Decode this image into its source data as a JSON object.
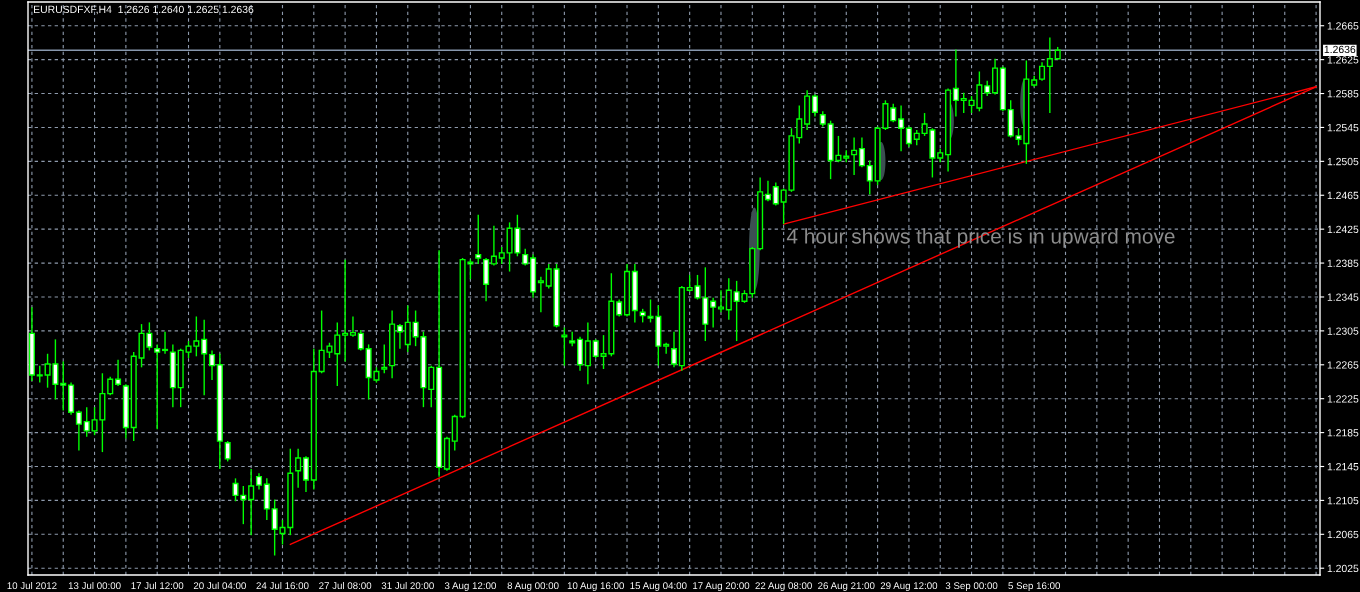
{
  "chart_data": {
    "type": "candlestick",
    "title": "EURUSDFXF,H4  1.2626 1.2640 1.2625 1.2636",
    "color": "#00ff00",
    "categories": [
      "10 Jul 2012",
      null,
      null,
      null,
      null,
      null,
      null,
      null,
      "13 Jul 00:00",
      null,
      null,
      null,
      null,
      null,
      null,
      null,
      "17 Jul 12:00",
      null,
      null,
      null,
      null,
      null,
      null,
      null,
      "20 Jul 04:00",
      null,
      null,
      null,
      null,
      null,
      null,
      null,
      "24 Jul 16:00",
      null,
      null,
      null,
      null,
      null,
      null,
      null,
      "27 Jul 08:00",
      null,
      null,
      null,
      null,
      null,
      null,
      null,
      "31 Jul 20:00",
      null,
      null,
      null,
      null,
      null,
      null,
      null,
      "3 Aug 12:00",
      null,
      null,
      null,
      null,
      null,
      null,
      null,
      "8 Aug 00:00",
      null,
      null,
      null,
      null,
      null,
      null,
      null,
      "10 Aug 16:00",
      null,
      null,
      null,
      null,
      null,
      null,
      null,
      "15 Aug 04:00",
      null,
      null,
      null,
      null,
      null,
      null,
      null,
      "17 Aug 20:00",
      null,
      null,
      null,
      null,
      null,
      null,
      null,
      "22 Aug 08:00",
      null,
      null,
      null,
      null,
      null,
      null,
      null,
      "26 Aug 21:00",
      null,
      null,
      null,
      null,
      null,
      null,
      null,
      "29 Aug 12:00",
      null,
      null,
      null,
      null,
      null,
      null,
      null,
      "3 Sep 00:00",
      null,
      null,
      null,
      null,
      null,
      null,
      null,
      "5 Sep 16:00",
      null,
      null,
      null,
      null,
      null,
      null,
      null,
      null,
      null,
      null,
      null,
      null,
      null,
      null,
      null,
      null,
      null,
      null,
      null,
      null,
      null,
      null,
      null,
      null,
      null,
      null,
      null,
      null,
      null,
      null,
      null,
      null,
      null,
      null,
      null,
      null
    ],
    "ohlc": [
      [
        1.2302,
        1.2333,
        1.2246,
        1.2253
      ],
      [
        1.2252,
        1.2264,
        1.2244,
        1.2253
      ],
      [
        1.2253,
        1.2278,
        1.2238,
        1.2266
      ],
      [
        1.2266,
        1.2295,
        1.2224,
        1.2242
      ],
      [
        1.2243,
        1.2269,
        1.2211,
        1.2241
      ],
      [
        1.2241,
        1.2244,
        1.2206,
        1.2209
      ],
      [
        1.2209,
        1.2211,
        1.2164,
        1.2195
      ],
      [
        1.2198,
        1.2215,
        1.218,
        1.2187
      ],
      [
        1.2187,
        1.2215,
        1.2182,
        1.22
      ],
      [
        1.22,
        1.2255,
        1.2162,
        1.2231
      ],
      [
        1.2231,
        1.2251,
        1.2229,
        1.2248
      ],
      [
        1.2248,
        1.2271,
        1.224,
        1.2242
      ],
      [
        1.224,
        1.2242,
        1.2178,
        1.2191
      ],
      [
        1.2191,
        1.228,
        1.2175,
        1.2275
      ],
      [
        1.2273,
        1.2313,
        1.2262,
        1.2302
      ],
      [
        1.2302,
        1.2315,
        1.2282,
        1.2286
      ],
      [
        1.2284,
        1.2289,
        1.2189,
        1.228
      ],
      [
        1.2282,
        1.2304,
        1.2278,
        1.2283
      ],
      [
        1.228,
        1.2289,
        1.2215,
        1.2238
      ],
      [
        1.2238,
        1.2284,
        1.2215,
        1.2282
      ],
      [
        1.228,
        1.2293,
        1.2273,
        1.2287
      ],
      [
        1.2287,
        1.2322,
        1.2275,
        1.2293
      ],
      [
        1.2295,
        1.2318,
        1.2229,
        1.2278
      ],
      [
        1.2277,
        1.2282,
        1.2247,
        1.2264
      ],
      [
        1.2265,
        1.2278,
        1.2142,
        1.2175
      ],
      [
        1.2173,
        1.2175,
        1.2151,
        1.2154
      ],
      [
        1.2125,
        1.2131,
        1.2104,
        1.2111
      ],
      [
        1.2111,
        1.2122,
        1.2077,
        1.2106
      ],
      [
        1.2106,
        1.2142,
        1.2064,
        1.2122
      ],
      [
        1.2133,
        1.2137,
        1.2118,
        1.2123
      ],
      [
        1.2124,
        1.2131,
        1.2082,
        1.2095
      ],
      [
        1.2095,
        1.2106,
        1.204,
        1.2071
      ],
      [
        1.2066,
        1.2082,
        1.2053,
        1.2073
      ],
      [
        1.2073,
        1.2166,
        1.2064,
        1.2137
      ],
      [
        1.214,
        1.2166,
        1.212,
        1.2155
      ],
      [
        1.2155,
        1.2157,
        1.2115,
        1.2129
      ],
      [
        1.2129,
        1.2284,
        1.2118,
        1.2257
      ],
      [
        1.2257,
        1.2329,
        1.2255,
        1.2282
      ],
      [
        1.228,
        1.2291,
        1.2273,
        1.2287
      ],
      [
        1.2278,
        1.2315,
        1.224,
        1.23
      ],
      [
        1.23,
        1.2389,
        1.2269,
        1.2302
      ],
      [
        1.23,
        1.2322,
        1.2298,
        1.2303
      ],
      [
        1.2302,
        1.2306,
        1.2282,
        1.2284
      ],
      [
        1.2284,
        1.2289,
        1.2224,
        1.225
      ],
      [
        1.2247,
        1.2262,
        1.2244,
        1.2257
      ],
      [
        1.226,
        1.2289,
        1.2255,
        1.2262
      ],
      [
        1.2264,
        1.2329,
        1.2249,
        1.2313
      ],
      [
        1.2311,
        1.2313,
        1.2284,
        1.2304
      ],
      [
        1.2289,
        1.2335,
        1.228,
        1.2315
      ],
      [
        1.2315,
        1.2329,
        1.2287,
        1.2298
      ],
      [
        1.2298,
        1.2304,
        1.2215,
        1.2238
      ],
      [
        1.2236,
        1.2264,
        1.2215,
        1.2262
      ],
      [
        1.2262,
        1.24,
        1.2133,
        1.2144
      ],
      [
        1.2142,
        1.218,
        1.214,
        1.2178
      ],
      [
        1.2175,
        1.2206,
        1.2164,
        1.2204
      ],
      [
        1.2204,
        1.2391,
        1.2202,
        1.2389
      ],
      [
        1.2386,
        1.2389,
        1.2366,
        1.2384
      ],
      [
        1.2395,
        1.2442,
        1.2384,
        1.2391
      ],
      [
        1.2389,
        1.2391,
        1.234,
        1.236
      ],
      [
        1.2384,
        1.2429,
        1.2382,
        1.2393
      ],
      [
        1.2391,
        1.2404,
        1.2384,
        1.2397
      ],
      [
        1.2397,
        1.2433,
        1.2375,
        1.2426
      ],
      [
        1.2426,
        1.2442,
        1.2393,
        1.2397
      ],
      [
        1.2395,
        1.2402,
        1.2382,
        1.2384
      ],
      [
        1.2391,
        1.2395,
        1.2344,
        1.2351
      ],
      [
        1.2362,
        1.2369,
        1.2327,
        1.2364
      ],
      [
        1.2358,
        1.2384,
        1.2355,
        1.2378
      ],
      [
        1.2378,
        1.2384,
        1.2309,
        1.2311
      ],
      [
        1.2298,
        1.2309,
        1.2264,
        1.23
      ],
      [
        1.2293,
        1.2304,
        1.2287,
        1.2291
      ],
      [
        1.2295,
        1.2298,
        1.2258,
        1.2265
      ],
      [
        1.2264,
        1.2315,
        1.2242,
        1.2293
      ],
      [
        1.2293,
        1.2295,
        1.2273,
        1.2275
      ],
      [
        1.2275,
        1.23,
        1.226,
        1.2278
      ],
      [
        1.2278,
        1.2373,
        1.2275,
        1.234
      ],
      [
        1.2339,
        1.2342,
        1.2322,
        1.2324
      ],
      [
        1.2324,
        1.2384,
        1.2322,
        1.2375
      ],
      [
        1.2375,
        1.2384,
        1.2315,
        1.2329
      ],
      [
        1.2327,
        1.2331,
        1.2315,
        1.2323
      ],
      [
        1.2322,
        1.2342,
        1.2315,
        1.232
      ],
      [
        1.2322,
        1.2335,
        1.2264,
        1.2287
      ],
      [
        1.2287,
        1.2291,
        1.2278,
        1.2289
      ],
      [
        1.2284,
        1.2304,
        1.2262,
        1.2266
      ],
      [
        1.2264,
        1.2358,
        1.2258,
        1.2356
      ],
      [
        1.2353,
        1.2371,
        1.2351,
        1.2356
      ],
      [
        1.2358,
        1.2371,
        1.2342,
        1.2344
      ],
      [
        1.2344,
        1.238,
        1.2293,
        1.2313
      ],
      [
        1.234,
        1.2344,
        1.2309,
        1.2333
      ],
      [
        1.2331,
        1.2353,
        1.2327,
        1.2333
      ],
      [
        1.233,
        1.2367,
        1.2318,
        1.2353
      ],
      [
        1.2351,
        1.2364,
        1.2293,
        1.234
      ],
      [
        1.234,
        1.2353,
        1.2338,
        1.2349
      ],
      [
        1.2349,
        1.2404,
        1.2344,
        1.2402
      ],
      [
        1.2402,
        1.2486,
        1.24,
        1.2469
      ],
      [
        1.2466,
        1.2482,
        1.2458,
        1.246
      ],
      [
        1.2475,
        1.248,
        1.2453,
        1.2455
      ],
      [
        1.2457,
        1.2473,
        1.2431,
        1.2471
      ],
      [
        1.2471,
        1.2544,
        1.2469,
        1.2535
      ],
      [
        1.2533,
        1.2571,
        1.2526,
        1.2555
      ],
      [
        1.2549,
        1.2589,
        1.2542,
        1.2582
      ],
      [
        1.2582,
        1.2584,
        1.2558,
        1.2563
      ],
      [
        1.256,
        1.2564,
        1.2546,
        1.2549
      ],
      [
        1.2549,
        1.2553,
        1.2484,
        1.2506
      ],
      [
        1.2506,
        1.2535,
        1.2504,
        1.2512
      ],
      [
        1.2509,
        1.2518,
        1.2504,
        1.2511
      ],
      [
        1.2513,
        1.2533,
        1.2489,
        1.2518
      ],
      [
        1.252,
        1.2533,
        1.2498,
        1.25
      ],
      [
        1.25,
        1.2506,
        1.2466,
        1.2482
      ],
      [
        1.2482,
        1.2546,
        1.2477,
        1.2544
      ],
      [
        1.2544,
        1.2577,
        1.2542,
        1.2573
      ],
      [
        1.2568,
        1.2573,
        1.2551,
        1.2553
      ],
      [
        1.2555,
        1.2571,
        1.2517,
        1.2544
      ],
      [
        1.2544,
        1.2546,
        1.2522,
        1.2526
      ],
      [
        1.2531,
        1.2542,
        1.2524,
        1.2538
      ],
      [
        1.2538,
        1.2562,
        1.2535,
        1.2549
      ],
      [
        1.2542,
        1.2544,
        1.2486,
        1.2509
      ],
      [
        1.2509,
        1.252,
        1.2504,
        1.2515
      ],
      [
        1.2513,
        1.2591,
        1.2493,
        1.2589
      ],
      [
        1.2591,
        1.2637,
        1.2558,
        1.2577
      ],
      [
        1.2577,
        1.2586,
        1.2562,
        1.2579
      ],
      [
        1.2571,
        1.2582,
        1.2562,
        1.2577
      ],
      [
        1.2568,
        1.2611,
        1.2564,
        1.2595
      ],
      [
        1.2594,
        1.26,
        1.2582,
        1.2586
      ],
      [
        1.2586,
        1.2626,
        1.2584,
        1.2615
      ],
      [
        1.2615,
        1.2617,
        1.2564,
        1.2566
      ],
      [
        1.2566,
        1.2577,
        1.2533,
        1.2535
      ],
      [
        1.2535,
        1.2544,
        1.2524,
        1.2531
      ],
      [
        1.2526,
        1.2624,
        1.2502,
        1.2602
      ],
      [
        1.2595,
        1.2606,
        1.2593,
        1.2601
      ],
      [
        1.2602,
        1.2622,
        1.26,
        1.2617
      ],
      [
        1.2617,
        1.2651,
        1.2562,
        1.2626
      ],
      [
        1.2626,
        1.264,
        1.2625,
        1.2636
      ],
      null,
      null,
      null,
      null,
      null,
      null,
      null,
      null,
      null,
      null,
      null,
      null,
      null,
      null,
      null,
      null,
      null,
      null,
      null,
      null,
      null,
      null,
      null,
      null,
      null,
      null,
      null,
      null,
      null,
      null,
      null,
      null,
      null
    ],
    "series": [
      {
        "type": "line",
        "color": "#ff0000",
        "values": [
          null,
          null,
          null,
          null,
          null,
          null,
          null,
          null,
          null,
          null,
          null,
          null,
          null,
          null,
          null,
          null,
          null,
          null,
          null,
          null,
          null,
          null,
          null,
          null,
          null,
          null,
          null,
          null,
          null,
          null,
          null,
          null,
          null,
          1.2053,
          null,
          null,
          null,
          null,
          null,
          null,
          null,
          null,
          null,
          null,
          null,
          null,
          null,
          null,
          null,
          null,
          null,
          null,
          null,
          null,
          null,
          null,
          null,
          null,
          null,
          null,
          null,
          null,
          null,
          null,
          null,
          null,
          null,
          null,
          null,
          null,
          null,
          null,
          null,
          null,
          null,
          null,
          null,
          null,
          null,
          null,
          null,
          null,
          null,
          null,
          null,
          null,
          null,
          null,
          null,
          null,
          null,
          null,
          null,
          null,
          null,
          null,
          null,
          null,
          null,
          null,
          null,
          null,
          null,
          null,
          null,
          null,
          null,
          null,
          null,
          null,
          null,
          null,
          null,
          null,
          null,
          null,
          null,
          null,
          null,
          null,
          null,
          null,
          null,
          null,
          null,
          null,
          null,
          null,
          null,
          null,
          null,
          null,
          null,
          null,
          null,
          null,
          null,
          null,
          null,
          null,
          null,
          null,
          null,
          null,
          null,
          null,
          null,
          null,
          null,
          null,
          null,
          null,
          null,
          null,
          null,
          null,
          null,
          null,
          null,
          null,
          null,
          null,
          null,
          null,
          1.2593
        ]
      },
      {
        "type": "line",
        "color": "#ff0000",
        "values": [
          null,
          null,
          null,
          null,
          null,
          null,
          null,
          null,
          null,
          null,
          null,
          null,
          null,
          null,
          null,
          null,
          null,
          null,
          null,
          null,
          null,
          null,
          null,
          null,
          null,
          null,
          null,
          null,
          null,
          null,
          null,
          null,
          null,
          null,
          null,
          null,
          null,
          null,
          null,
          null,
          null,
          null,
          null,
          null,
          null,
          null,
          null,
          null,
          null,
          null,
          null,
          null,
          null,
          null,
          null,
          null,
          null,
          null,
          null,
          null,
          null,
          null,
          null,
          null,
          null,
          null,
          null,
          null,
          null,
          null,
          null,
          null,
          null,
          null,
          null,
          null,
          null,
          null,
          null,
          null,
          null,
          null,
          null,
          null,
          null,
          null,
          null,
          null,
          null,
          null,
          null,
          null,
          null,
          null,
          null,
          null,
          1.2431,
          null,
          null,
          null,
          null,
          null,
          null,
          null,
          null,
          null,
          null,
          null,
          null,
          null,
          null,
          null,
          null,
          null,
          null,
          null,
          null,
          null,
          null,
          null,
          null,
          null,
          null,
          null,
          null,
          null,
          null,
          null,
          null,
          null,
          null,
          null,
          null,
          null,
          null,
          null,
          null,
          null,
          null,
          null,
          null,
          null,
          null,
          null,
          null,
          null,
          null,
          null,
          null,
          null,
          null,
          null,
          null,
          null,
          null,
          null,
          null,
          null,
          null,
          null,
          null,
          null,
          null,
          null,
          1.2593
        ]
      }
    ],
    "ref_lines": [
      {
        "axis": "y",
        "value": 1.2636,
        "label": "1.2636",
        "color": "#8797ad"
      }
    ],
    "annotations": [
      "4 hour shows that price is in upward move"
    ],
    "ylim": [
      1.2017,
      1.2693
    ],
    "yticks": [
      1.2025,
      1.2065,
      1.2105,
      1.2145,
      1.2185,
      1.2225,
      1.2265,
      1.2305,
      1.2345,
      1.2385,
      1.2425,
      1.2465,
      1.2505,
      1.2545,
      1.2585,
      1.2625,
      1.2665
    ],
    "grid": true
  }
}
